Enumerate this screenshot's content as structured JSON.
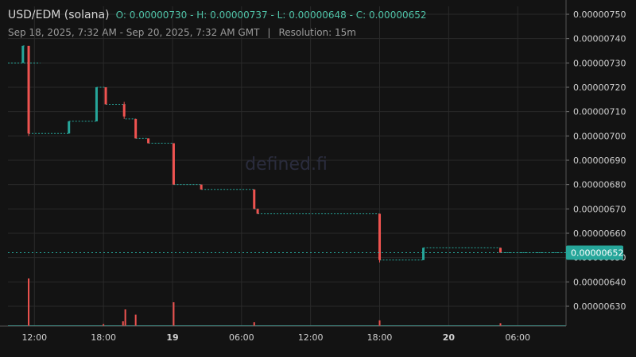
{
  "header": {
    "pair": "USD/EDM (solana)",
    "ohlc": {
      "open_label": "O:",
      "open": "0.00000730",
      "high_label": "H:",
      "high": "0.00000737",
      "low_label": "L:",
      "low": "0.00000648",
      "close_label": "C:",
      "close": "0.00000652"
    },
    "date_range": "Sep 18, 2025, 7:32 AM - Sep 20, 2025, 7:32 AM GMT",
    "separator": "|",
    "resolution": "Resolution: 15m"
  },
  "watermark": "defined.fi",
  "colors": {
    "background": "#131313",
    "grid": "#2a2a2a",
    "up": "#26a69a",
    "down": "#ef5350",
    "axis_text": "#d0d0d0",
    "last_price_bg": "#26a69a"
  },
  "chart_data": {
    "type": "candlestick",
    "title": "",
    "xlabel": "",
    "ylabel": "",
    "x_range_hours": [
      9.7,
      58.2
    ],
    "ylim": [
      6.23e-06,
      7.52e-06
    ],
    "y_ticks": [
      "0.00000750",
      "0.00000740",
      "0.00000730",
      "0.00000720",
      "0.00000710",
      "0.00000700",
      "0.00000690",
      "0.00000680",
      "0.00000670",
      "0.00000660",
      "0.00000650",
      "0.00000640",
      "0.00000630"
    ],
    "x_ticks": [
      {
        "label": "12:00",
        "hour": 12,
        "bold": false
      },
      {
        "label": "18:00",
        "hour": 18,
        "bold": false
      },
      {
        "label": "19",
        "hour": 24,
        "bold": true
      },
      {
        "label": "06:00",
        "hour": 30,
        "bold": false
      },
      {
        "label": "12:00",
        "hour": 36,
        "bold": false
      },
      {
        "label": "18:00",
        "hour": 42,
        "bold": false
      },
      {
        "label": "20",
        "hour": 48,
        "bold": true
      },
      {
        "label": "06:00",
        "hour": 54,
        "bold": false
      }
    ],
    "last_price": "0.00000652",
    "flat_segments": [
      {
        "from": 9.7,
        "to": 12.5,
        "price": 7.3e-06
      },
      {
        "from": 11.0,
        "to": 11.2,
        "price": 7.37e-06
      },
      {
        "from": 11.5,
        "to": 15.0,
        "price": 7.01e-06
      },
      {
        "from": 15.0,
        "to": 17.4,
        "price": 7.06e-06
      },
      {
        "from": 17.4,
        "to": 18.2,
        "price": 7.2e-06
      },
      {
        "from": 18.2,
        "to": 19.9,
        "price": 7.13e-06
      },
      {
        "from": 19.9,
        "to": 20.8,
        "price": 7.07e-06
      },
      {
        "from": 20.8,
        "to": 21.9,
        "price": 6.99e-06
      },
      {
        "from": 21.9,
        "to": 24.1,
        "price": 6.97e-06
      },
      {
        "from": 24.1,
        "to": 26.5,
        "price": 6.8e-06
      },
      {
        "from": 26.5,
        "to": 31.1,
        "price": 6.78e-06
      },
      {
        "from": 31.1,
        "to": 31.4,
        "price": 6.7e-06
      },
      {
        "from": 31.4,
        "to": 42.0,
        "price": 6.68e-06
      },
      {
        "from": 42.0,
        "to": 45.8,
        "price": 6.49e-06
      },
      {
        "from": 45.8,
        "to": 52.5,
        "price": 6.54e-06
      },
      {
        "from": 52.5,
        "to": 58.2,
        "price": 6.52e-06
      }
    ],
    "candles": [
      {
        "t": 11.0,
        "o": 7.3e-06,
        "c": 7.37e-06,
        "h": 7.37e-06,
        "l": 7.3e-06
      },
      {
        "t": 11.5,
        "o": 7.37e-06,
        "c": 7.01e-06,
        "h": 7.37e-06,
        "l": 7e-06
      },
      {
        "t": 15.0,
        "o": 7.01e-06,
        "c": 7.06e-06,
        "h": 7.06e-06,
        "l": 7.01e-06
      },
      {
        "t": 17.4,
        "o": 7.06e-06,
        "c": 7.2e-06,
        "h": 7.2e-06,
        "l": 7.06e-06
      },
      {
        "t": 18.2,
        "o": 7.2e-06,
        "c": 7.13e-06,
        "h": 7.2e-06,
        "l": 7.13e-06
      },
      {
        "t": 19.8,
        "o": 7.13e-06,
        "c": 7.08e-06,
        "h": 7.14e-06,
        "l": 7.07e-06
      },
      {
        "t": 20.8,
        "o": 7.07e-06,
        "c": 6.99e-06,
        "h": 7.07e-06,
        "l": 6.99e-06
      },
      {
        "t": 21.9,
        "o": 6.99e-06,
        "c": 6.97e-06,
        "h": 6.99e-06,
        "l": 6.97e-06
      },
      {
        "t": 24.1,
        "o": 6.97e-06,
        "c": 6.8e-06,
        "h": 6.97e-06,
        "l": 6.8e-06
      },
      {
        "t": 26.5,
        "o": 6.8e-06,
        "c": 6.78e-06,
        "h": 6.8e-06,
        "l": 6.78e-06
      },
      {
        "t": 31.1,
        "o": 6.78e-06,
        "c": 6.7e-06,
        "h": 6.78e-06,
        "l": 6.7e-06
      },
      {
        "t": 31.4,
        "o": 6.7e-06,
        "c": 6.68e-06,
        "h": 6.7e-06,
        "l": 6.68e-06
      },
      {
        "t": 42.0,
        "o": 6.68e-06,
        "c": 6.49e-06,
        "h": 6.68e-06,
        "l": 6.48e-06
      },
      {
        "t": 45.8,
        "o": 6.49e-06,
        "c": 6.54e-06,
        "h": 6.54e-06,
        "l": 6.49e-06
      },
      {
        "t": 52.5,
        "o": 6.54e-06,
        "c": 6.52e-06,
        "h": 6.54e-06,
        "l": 6.52e-06
      }
    ],
    "volumes": [
      {
        "t": 11.5,
        "v": 1.0,
        "dir": "down"
      },
      {
        "t": 18.0,
        "v": 0.04,
        "dir": "down"
      },
      {
        "t": 19.7,
        "v": 0.1,
        "dir": "down"
      },
      {
        "t": 19.9,
        "v": 0.35,
        "dir": "down"
      },
      {
        "t": 20.8,
        "v": 0.24,
        "dir": "down"
      },
      {
        "t": 24.1,
        "v": 0.5,
        "dir": "down"
      },
      {
        "t": 31.1,
        "v": 0.08,
        "dir": "down"
      },
      {
        "t": 42.0,
        "v": 0.12,
        "dir": "down"
      },
      {
        "t": 52.5,
        "v": 0.06,
        "dir": "down"
      }
    ]
  }
}
